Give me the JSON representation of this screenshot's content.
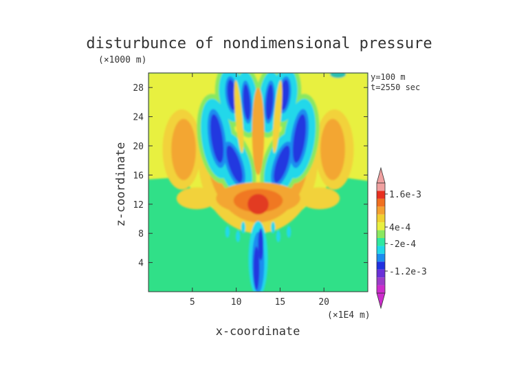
{
  "chart_data": {
    "type": "heatmap",
    "title": "disturbunce of nondimensional pressure",
    "xlabel": "x-coordinate",
    "ylabel": "z-coordinate",
    "x_unit": "(×1E4 m)",
    "z_unit": "(×1000 m)",
    "annotations": [
      "y=100 m",
      "t=2550 sec"
    ],
    "xlim": [
      0,
      25
    ],
    "ylim": [
      0,
      30
    ],
    "x_ticks": [
      5,
      10,
      15,
      20
    ],
    "y_ticks": [
      4,
      8,
      12,
      16,
      20,
      24,
      28
    ],
    "colorbar": {
      "labels": [
        "1.6e-3",
        "4e-4",
        "-2e-4",
        "-1.2e-3"
      ],
      "label_values": [
        0.0016,
        0.0004,
        -0.0002,
        -0.0012
      ],
      "min": -0.002,
      "max": 0.002,
      "colors": [
        "#cc2ccc",
        "#9c3cc8",
        "#6a30d8",
        "#2030e0",
        "#1a8cf0",
        "#20d8e8",
        "#30e8a0",
        "#8ae860",
        "#e8f040",
        "#f0d030",
        "#f4a030",
        "#f07020",
        "#e83020",
        "#f0a0a0"
      ]
    }
  }
}
